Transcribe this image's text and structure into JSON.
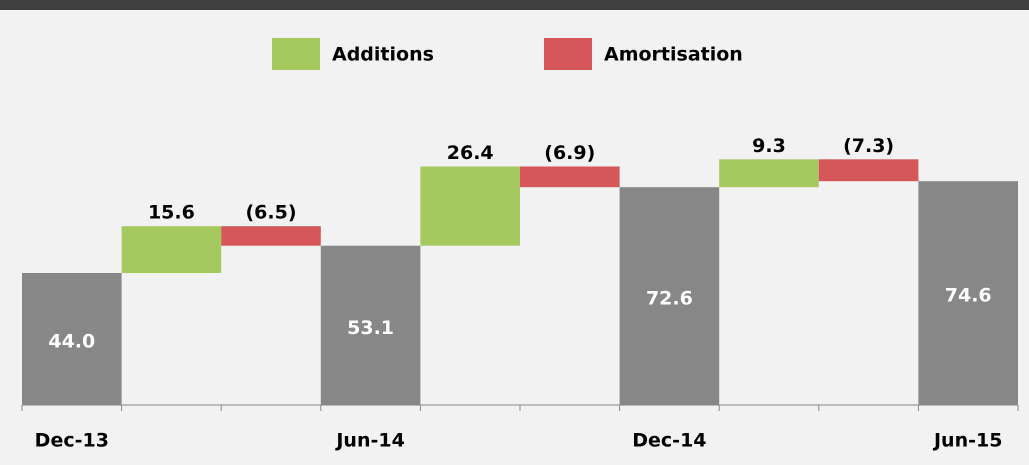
{
  "chart_data": {
    "type": "waterfall",
    "categories": [
      "Dec-13",
      null,
      null,
      "Jun-14",
      null,
      null,
      "Dec-14",
      null,
      null,
      "Jun-15"
    ],
    "values": [
      44.0,
      15.6,
      -6.5,
      53.1,
      26.4,
      -6.9,
      72.6,
      9.3,
      -7.3,
      74.6
    ],
    "value_labels": [
      "44.0",
      "15.6",
      "(6.5)",
      "53.1",
      "26.4",
      "(6.9)",
      "72.6",
      "9.3",
      "(7.3)",
      "74.6"
    ],
    "total_color": "#878787",
    "legend": [
      {
        "name": "Additions",
        "color": "#a5c85f"
      },
      {
        "name": "Amortisation",
        "color": "#d6575a"
      }
    ]
  }
}
